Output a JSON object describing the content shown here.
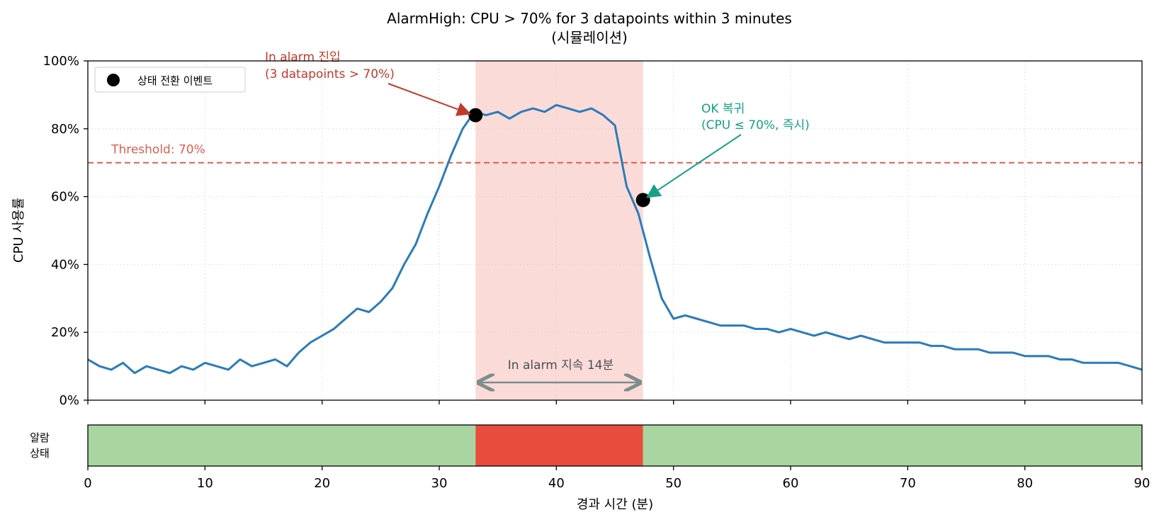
{
  "chart_data": {
    "type": "line",
    "title": "AlarmHigh: CPU > 70% for 3 datapoints within 3 minutes",
    "subtitle": "(시뮬레이션)",
    "xlabel": "경과 시간 (분)",
    "ylabel": "CPU 사용률",
    "xlim": [
      0,
      90
    ],
    "ylim": [
      0,
      100
    ],
    "x_ticks": [
      0,
      10,
      20,
      30,
      40,
      50,
      60,
      70,
      80,
      90
    ],
    "y_ticks": [
      0,
      20,
      40,
      60,
      80,
      100
    ],
    "y_tick_labels": [
      "0%",
      "20%",
      "40%",
      "60%",
      "80%",
      "100%"
    ],
    "grid": true,
    "threshold": {
      "value": 70,
      "label": "Threshold: 70%",
      "color": "#d9604f"
    },
    "series": [
      {
        "name": "CPU",
        "color": "#2b7bba",
        "x": [
          0,
          1,
          2,
          3,
          4,
          5,
          6,
          7,
          8,
          9,
          10,
          11,
          12,
          13,
          14,
          15,
          16,
          17,
          18,
          19,
          20,
          21,
          22,
          23,
          24,
          25,
          26,
          27,
          28,
          29,
          30,
          31,
          32,
          33,
          34,
          35,
          36,
          37,
          38,
          39,
          40,
          41,
          42,
          43,
          44,
          45,
          46,
          47,
          48,
          49,
          50,
          51,
          52,
          53,
          54,
          55,
          56,
          57,
          58,
          59,
          60,
          61,
          62,
          63,
          64,
          65,
          66,
          67,
          68,
          69,
          70,
          71,
          72,
          73,
          74,
          75,
          76,
          77,
          78,
          79,
          80,
          81,
          82,
          83,
          84,
          85,
          86,
          87,
          88,
          89,
          90
        ],
        "y": [
          12,
          10,
          9,
          11,
          8,
          10,
          9,
          8,
          10,
          9,
          11,
          10,
          9,
          12,
          10,
          11,
          12,
          10,
          14,
          17,
          19,
          21,
          24,
          27,
          26,
          29,
          33,
          40,
          46,
          55,
          63,
          72,
          80,
          85,
          84,
          85,
          83,
          85,
          86,
          85,
          87,
          86,
          85,
          86,
          84,
          81,
          63,
          55,
          42,
          30,
          24,
          25,
          24,
          23,
          22,
          22,
          22,
          21,
          21,
          20,
          21,
          20,
          19,
          20,
          19,
          18,
          19,
          18,
          17,
          17,
          17,
          17,
          16,
          16,
          15,
          15,
          15,
          14,
          14,
          14,
          13,
          13,
          13,
          12,
          12,
          11,
          11,
          11,
          11,
          10,
          9
        ]
      }
    ],
    "events": [
      {
        "name": "alarm-entry",
        "x": 33.1,
        "y": 84
      },
      {
        "name": "ok-return",
        "x": 47.4,
        "y": 59
      }
    ],
    "legend": {
      "label": "상태 전환 이벤트",
      "position": "top-left"
    },
    "alarm_window": {
      "start": 33.1,
      "end": 47.4,
      "color": "#f5b7b1"
    },
    "annotations": {
      "entry": {
        "line1": "In alarm 진입",
        "line2": "(3 datapoints > 70%)",
        "color": "#c0392b"
      },
      "ok": {
        "line1": "OK 복귀",
        "line2": "(CPU ≤ 70%, 즉시)",
        "color": "#17a085"
      },
      "duration": {
        "label": "In alarm 지속 14분",
        "color": "#7f8c8d"
      }
    },
    "state_bar": {
      "label_line1": "알람",
      "label_line2": "상태",
      "segments": [
        {
          "state": "OK",
          "start": 0,
          "end": 33.1,
          "color": "#a9d5a1"
        },
        {
          "state": "ALARM",
          "start": 33.1,
          "end": 47.4,
          "color": "#e74c3c"
        },
        {
          "state": "OK",
          "start": 47.4,
          "end": 90,
          "color": "#a9d5a1"
        }
      ]
    }
  }
}
